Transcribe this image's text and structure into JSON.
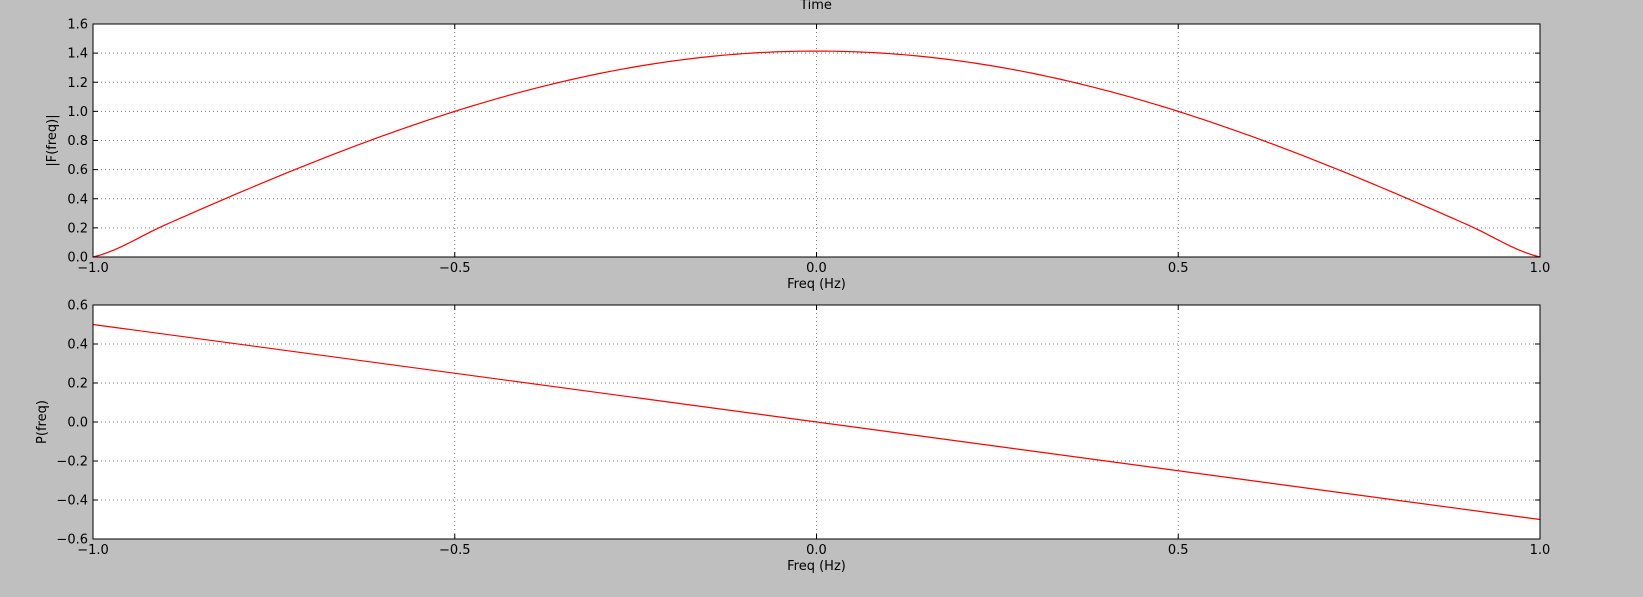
{
  "figure": {
    "title": "Time",
    "background": "#bfbfbf",
    "axes_background": "#ffffff",
    "line_color": "#ff0000",
    "grid_color": "#808080"
  },
  "chart_data": [
    {
      "type": "line",
      "title": "Time",
      "xlabel": "Freq (Hz)",
      "ylabel": "|F(freq)|",
      "xlim": [
        -1.0,
        1.0
      ],
      "ylim": [
        0.0,
        1.6
      ],
      "grid": true,
      "xticks": [
        -1.0,
        -0.5,
        0.0,
        0.5,
        1.0
      ],
      "xtick_labels": [
        "−1.0",
        "−0.5",
        "0.0",
        "0.5",
        "1.0"
      ],
      "yticks": [
        0.0,
        0.2,
        0.4,
        0.6,
        0.8,
        1.0,
        1.2,
        1.4,
        1.6
      ],
      "ytick_labels": [
        "0.0",
        "0.2",
        "0.4",
        "0.6",
        "0.8",
        "1.0",
        "1.2",
        "1.4",
        "1.6"
      ],
      "series": [
        {
          "color": "#ff0000",
          "x": [
            -1.0,
            -0.9,
            -0.8,
            -0.7,
            -0.6,
            -0.5,
            -0.4,
            -0.3,
            -0.2,
            -0.1,
            0.0,
            0.1,
            0.2,
            0.3,
            0.4,
            0.5,
            0.6,
            0.7,
            0.8,
            0.9,
            1.0
          ],
          "y": [
            0.0,
            0.221,
            0.437,
            0.642,
            0.831,
            1.0,
            1.144,
            1.26,
            1.345,
            1.397,
            1.414,
            1.397,
            1.345,
            1.26,
            1.144,
            1.0,
            0.831,
            0.642,
            0.437,
            0.221,
            0.0
          ]
        }
      ]
    },
    {
      "type": "line",
      "xlabel": "Freq (Hz)",
      "ylabel": "P(freq)",
      "xlim": [
        -1.0,
        1.0
      ],
      "ylim": [
        -0.6,
        0.6
      ],
      "grid": true,
      "xticks": [
        -1.0,
        -0.5,
        0.0,
        0.5,
        1.0
      ],
      "xtick_labels": [
        "−1.0",
        "−0.5",
        "0.0",
        "0.5",
        "1.0"
      ],
      "yticks": [
        -0.6,
        -0.4,
        -0.2,
        0.0,
        0.2,
        0.4,
        0.6
      ],
      "ytick_labels": [
        "−0.6",
        "−0.4",
        "−0.2",
        "0.0",
        "0.2",
        "0.4",
        "0.6"
      ],
      "series": [
        {
          "color": "#ff0000",
          "x": [
            -1.0,
            1.0
          ],
          "y": [
            0.5,
            -0.5
          ]
        }
      ]
    }
  ]
}
